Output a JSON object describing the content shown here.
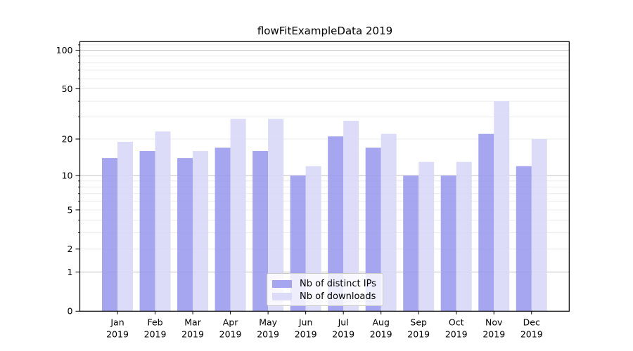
{
  "chart_data": {
    "type": "bar",
    "title": "flowFitExampleData 2019",
    "categories": [
      "Jan",
      "Feb",
      "Mar",
      "Apr",
      "May",
      "Jun",
      "Jul",
      "Aug",
      "Sep",
      "Oct",
      "Nov",
      "Dec"
    ],
    "x_year_suffix": "2019",
    "series": [
      {
        "name": "Nb of distinct IPs",
        "color": "#9b9bee",
        "values": [
          14,
          16,
          14,
          17,
          16,
          10,
          21,
          17,
          10,
          10,
          22,
          12
        ]
      },
      {
        "name": "Nb of downloads",
        "color": "#d8d8f8",
        "values": [
          19,
          23,
          16,
          29,
          29,
          12,
          28,
          22,
          13,
          13,
          40,
          20
        ]
      }
    ],
    "bar_opacity": 0.9,
    "y_axis": {
      "scale": "log1p",
      "ticks": [
        0,
        1,
        2,
        5,
        10,
        20,
        50,
        100
      ],
      "ylim": [
        0,
        115
      ]
    },
    "grid": {
      "major_lines": [
        1,
        10,
        100
      ],
      "minor_lines": [
        2,
        3,
        4,
        5,
        6,
        7,
        8,
        9,
        20,
        30,
        40,
        50,
        60,
        70,
        80,
        90,
        110
      ],
      "major_color": "#c0c0c0",
      "minor_color": "#ececec"
    },
    "legend": {
      "position": "lower center"
    },
    "axis_color": "#000000",
    "background_color": "#ffffff"
  }
}
